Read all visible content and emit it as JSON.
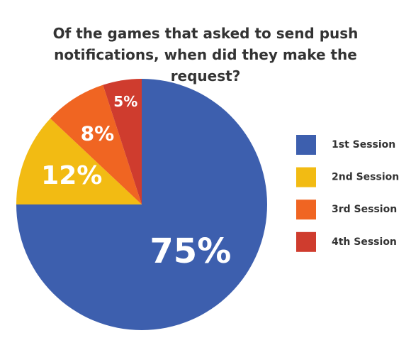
{
  "chart_data": {
    "type": "pie",
    "title": "Of the games that asked to send push notifications, when did they make the request?",
    "categories": [
      "1st Session",
      "2nd Session",
      "3rd Session",
      "4th Session"
    ],
    "values": [
      75,
      12,
      8,
      5
    ],
    "value_labels": [
      "75%",
      "12%",
      "8%",
      "5%"
    ],
    "colors": [
      "#3d5fae",
      "#f2bb13",
      "#f06522",
      "#cf3c2e"
    ],
    "legend": "right"
  }
}
